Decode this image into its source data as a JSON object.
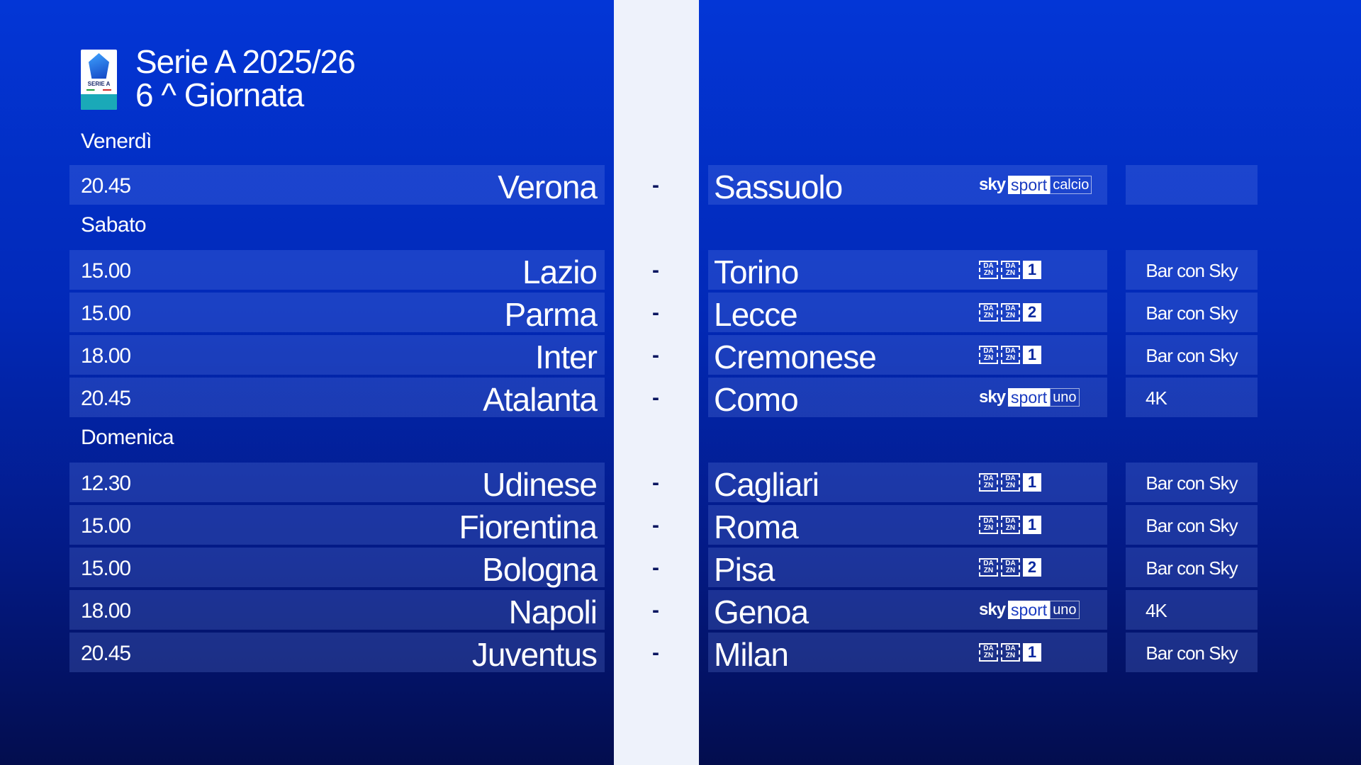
{
  "header": {
    "logo_text": "SERIE A",
    "title": "Serie A 2025/26",
    "subtitle": "6 ^ Giornata"
  },
  "colors": {
    "strip": "#eef2fb",
    "bg_top": "#0336d6",
    "bg_bottom": "#030d4e"
  },
  "separator": "-",
  "days": [
    {
      "label": "Venerdì",
      "matches": [
        {
          "time": "20.45",
          "home": "Verona",
          "away": "Sassuolo",
          "channel": {
            "type": "sky",
            "brand": "sky",
            "sport": "sport",
            "name": "calcio"
          },
          "extra": ""
        }
      ]
    },
    {
      "label": "Sabato",
      "matches": [
        {
          "time": "15.00",
          "home": "Lazio",
          "away": "Torino",
          "channel": {
            "type": "dazn",
            "brand": "DA ZN",
            "number": "1"
          },
          "extra": "Bar con Sky"
        },
        {
          "time": "15.00",
          "home": "Parma",
          "away": "Lecce",
          "channel": {
            "type": "dazn",
            "brand": "DA ZN",
            "number": "2"
          },
          "extra": "Bar con Sky"
        },
        {
          "time": "18.00",
          "home": "Inter",
          "away": "Cremonese",
          "channel": {
            "type": "dazn",
            "brand": "DA ZN",
            "number": "1"
          },
          "extra": "Bar con Sky"
        },
        {
          "time": "20.45",
          "home": "Atalanta",
          "away": "Como",
          "channel": {
            "type": "sky",
            "brand": "sky",
            "sport": "sport",
            "name": "uno"
          },
          "extra": "4K"
        }
      ]
    },
    {
      "label": "Domenica",
      "matches": [
        {
          "time": "12.30",
          "home": "Udinese",
          "away": "Cagliari",
          "channel": {
            "type": "dazn",
            "brand": "DA ZN",
            "number": "1"
          },
          "extra": "Bar con Sky"
        },
        {
          "time": "15.00",
          "home": "Fiorentina",
          "away": "Roma",
          "channel": {
            "type": "dazn",
            "brand": "DA ZN",
            "number": "1"
          },
          "extra": "Bar con Sky"
        },
        {
          "time": "15.00",
          "home": "Bologna",
          "away": "Pisa",
          "channel": {
            "type": "dazn",
            "brand": "DA ZN",
            "number": "2"
          },
          "extra": "Bar con Sky"
        },
        {
          "time": "18.00",
          "home": "Napoli",
          "away": "Genoa",
          "channel": {
            "type": "sky",
            "brand": "sky",
            "sport": "sport",
            "name": "uno"
          },
          "extra": "4K"
        },
        {
          "time": "20.45",
          "home": "Juventus",
          "away": "Milan",
          "channel": {
            "type": "dazn",
            "brand": "DA ZN",
            "number": "1"
          },
          "extra": "Bar con Sky"
        }
      ]
    }
  ]
}
